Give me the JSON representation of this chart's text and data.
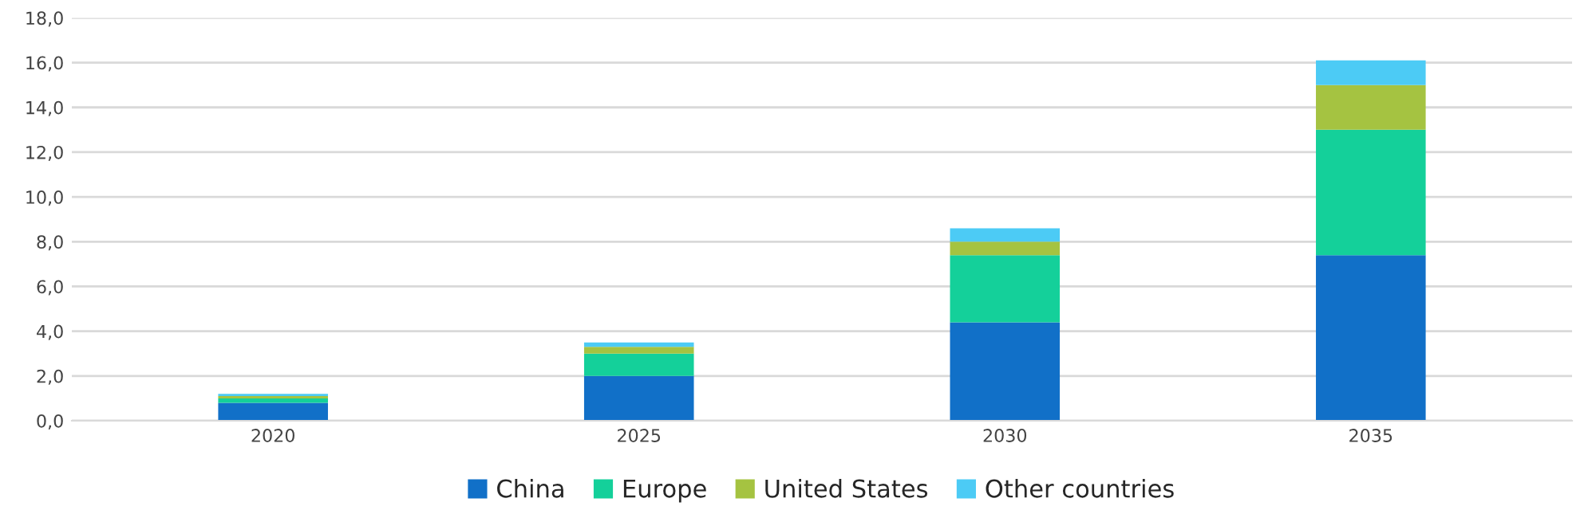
{
  "chart_data": {
    "type": "bar",
    "stacked": true,
    "categories": [
      "2020",
      "2025",
      "2030",
      "2035"
    ],
    "series": [
      {
        "name": "China",
        "color": "#1170c8",
        "values": [
          0.8,
          2.0,
          4.4,
          7.4
        ]
      },
      {
        "name": "Europe",
        "color": "#14d09a",
        "values": [
          0.2,
          1.0,
          3.0,
          5.6
        ]
      },
      {
        "name": "United States",
        "color": "#a5c341",
        "values": [
          0.1,
          0.3,
          0.6,
          2.0
        ]
      },
      {
        "name": "Other countries",
        "color": "#4ccbf5",
        "values": [
          0.1,
          0.2,
          0.6,
          1.1
        ]
      }
    ],
    "ylim": [
      0,
      18
    ],
    "yticks": [
      {
        "value": 0,
        "label": "0,0"
      },
      {
        "value": 2,
        "label": "2,0"
      },
      {
        "value": 4,
        "label": "4,0"
      },
      {
        "value": 6,
        "label": "6,0"
      },
      {
        "value": 8,
        "label": "8,0"
      },
      {
        "value": 10,
        "label": "10,0"
      },
      {
        "value": 12,
        "label": "12,0"
      },
      {
        "value": 14,
        "label": "14,0"
      },
      {
        "value": 16,
        "label": "16,0"
      },
      {
        "value": 18,
        "label": "18,0"
      }
    ],
    "grid": "y",
    "legend": "bottom"
  }
}
